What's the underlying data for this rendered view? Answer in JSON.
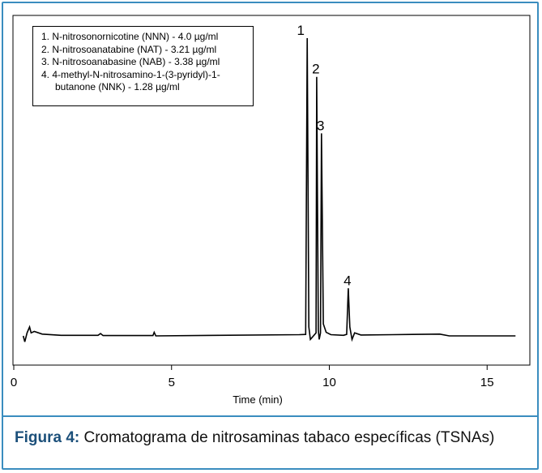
{
  "chart_data": {
    "type": "line",
    "xlabel": "Time (min)",
    "xlim": [
      0,
      16
    ],
    "ticks": [
      {
        "value": 0,
        "label": "0"
      },
      {
        "value": 5,
        "label": "5"
      },
      {
        "value": 10,
        "label": "10"
      },
      {
        "value": 15,
        "label": "15"
      }
    ],
    "legend": [
      "1. N-nitrosonornicotine (NNN) - 4.0 µg/ml",
      "2. N-nitrosoanatabine (NAT) - 3.21 µg/ml",
      "3. N-nitrosoanabasine (NAB) - 3.38 µg/ml",
      "4. 4-methyl-N-nitrosamino-1-(3-pyridyl)-1-",
      "butanone (NNK) - 1.28 µg/ml"
    ],
    "peaks": [
      {
        "label": "1",
        "time": 9.3,
        "height": 1.0
      },
      {
        "label": "2",
        "time": 9.6,
        "height": 0.87
      },
      {
        "label": "3",
        "time": 9.75,
        "height": 0.68
      },
      {
        "label": "4",
        "time": 10.6,
        "height": 0.16
      }
    ],
    "small_peaks": [
      {
        "time": 0.5,
        "height": 0.03
      },
      {
        "time": 2.75,
        "height": 0.008
      },
      {
        "time": 4.45,
        "height": 0.012
      }
    ]
  },
  "caption": {
    "label": "Figura 4:",
    "text": " Cromatograma de nitrosaminas tabaco específicas (TSNAs)"
  }
}
